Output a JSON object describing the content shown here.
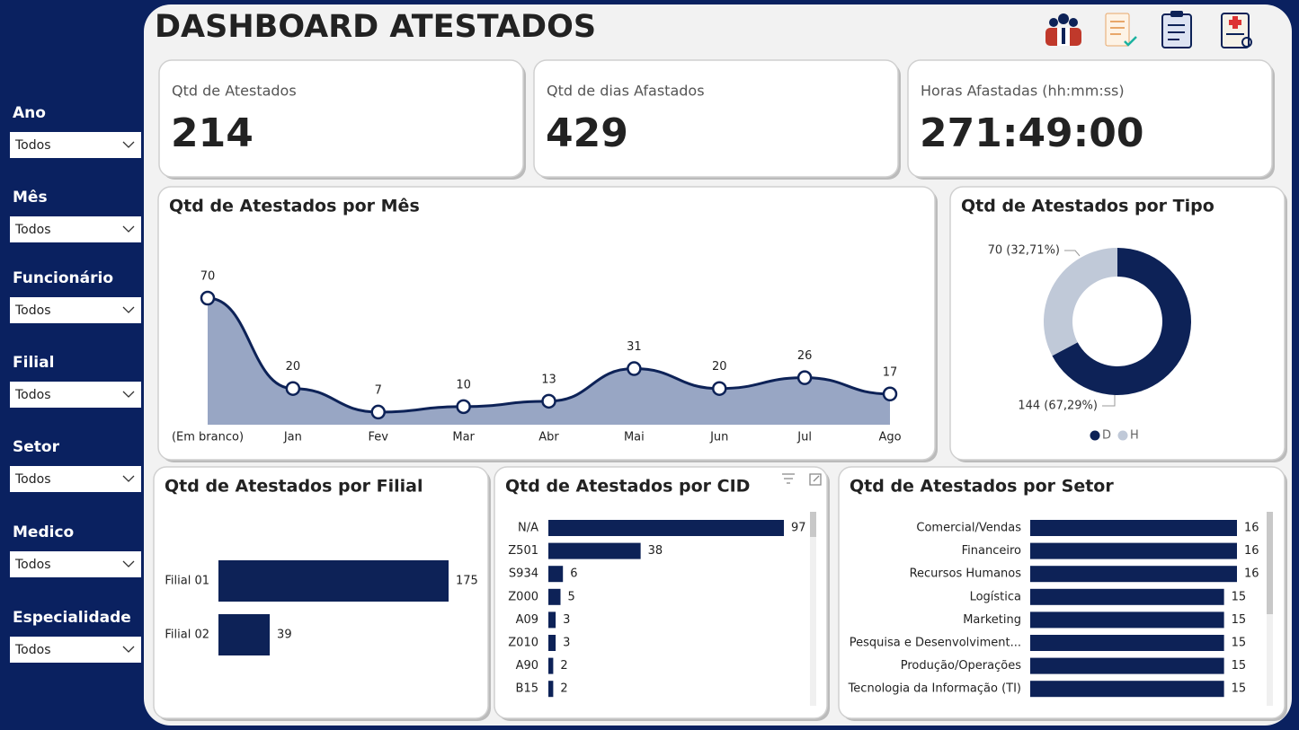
{
  "header": {
    "title": "DASHBOARD ATESTADOS"
  },
  "filters": [
    {
      "label": "Ano",
      "value": "Todos"
    },
    {
      "label": "Mês",
      "value": "Todos"
    },
    {
      "label": "Funcionário",
      "value": "Todos"
    },
    {
      "label": "Filial",
      "value": "Todos"
    },
    {
      "label": "Setor",
      "value": "Todos"
    },
    {
      "label": "Medico",
      "value": "Todos"
    },
    {
      "label": "Especialidade",
      "value": "Todos"
    }
  ],
  "kpis": [
    {
      "label": "Qtd de Atestados",
      "value": 214
    },
    {
      "label": "Qtd de dias Afastados",
      "value": 429
    },
    {
      "label": "Horas Afastadas (hh:mm:ss)",
      "value": "271:49:00"
    }
  ],
  "chart_data": [
    {
      "type": "line",
      "title": "Qtd de Atestados por Mês",
      "categories": [
        "(Em branco)",
        "Jan",
        "Fev",
        "Mar",
        "Abr",
        "Mai",
        "Jun",
        "Jul",
        "Ago"
      ],
      "values": [
        70,
        20,
        7,
        10,
        13,
        31,
        20,
        26,
        17
      ],
      "color": "#0d2257",
      "area_color": "#98a6c4"
    },
    {
      "type": "pie",
      "title": "Qtd de Atestados por Tipo",
      "categories": [
        "D",
        "H"
      ],
      "values": [
        144,
        70
      ],
      "value_labels": [
        "144 (67,29%)",
        "70 (32,71%)"
      ],
      "colors": [
        "#0d2257",
        "#c0c9d8"
      ]
    },
    {
      "type": "bar",
      "title": "Qtd de Atestados por Filial",
      "categories": [
        "Filial 01",
        "Filial 02"
      ],
      "values": [
        175,
        39
      ],
      "color": "#0d2257"
    },
    {
      "type": "bar",
      "title": "Qtd de Atestados por CID",
      "categories": [
        "N/A",
        "Z501",
        "S934",
        "Z000",
        "A09",
        "Z010",
        "A90",
        "B15"
      ],
      "values": [
        97,
        38,
        6,
        5,
        3,
        3,
        2,
        2
      ],
      "color": "#0d2257"
    },
    {
      "type": "bar",
      "title": "Qtd de Atestados por Setor",
      "categories": [
        "Comercial/Vendas",
        "Financeiro",
        "Recursos Humanos",
        "Logística",
        "Marketing",
        "Pesquisa e Desenvolviment...",
        "Produção/Operações",
        "Tecnologia da Informação (TI)"
      ],
      "values": [
        16,
        16,
        16,
        15,
        15,
        15,
        15,
        15
      ],
      "color": "#0d2257"
    }
  ]
}
